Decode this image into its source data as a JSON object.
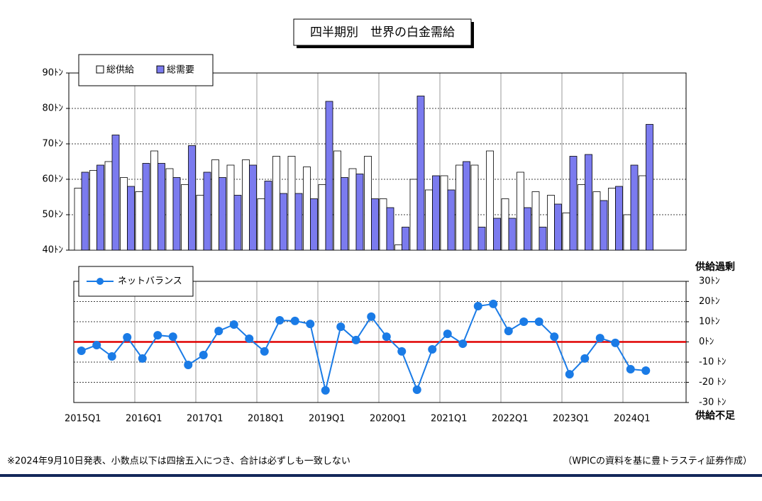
{
  "chart_data": [
    {
      "type": "bar",
      "title": "四半期別　世界の白金需給",
      "categories": [
        "2015Q1",
        null,
        null,
        null,
        "2016Q1",
        null,
        null,
        null,
        "2017Q1",
        null,
        null,
        null,
        "2018Q1",
        null,
        null,
        null,
        "2019Q1",
        null,
        null,
        null,
        "2020Q1",
        null,
        null,
        null,
        "2021Q1",
        null,
        null,
        null,
        "2022Q1",
        null,
        null,
        null,
        "2023Q1",
        null,
        null,
        null,
        "2024Q1",
        null
      ],
      "series": [
        {
          "name": "総供給",
          "color": "#ffffff",
          "values": [
            57.5,
            62.5,
            65,
            60.5,
            56.5,
            68,
            63,
            58.5,
            55.5,
            65.5,
            64,
            65.5,
            54.5,
            66.5,
            66.5,
            63.5,
            58.5,
            68,
            63,
            66.5,
            54.5,
            41.5,
            60,
            57,
            61,
            64,
            64,
            68,
            54.5,
            62,
            56.5,
            55.5,
            50.5,
            58.5,
            56.5,
            57.5,
            50,
            61
          ]
        },
        {
          "name": "総需要",
          "color": "#7b7bef",
          "values": [
            62,
            64,
            72.5,
            58,
            64.5,
            64.5,
            60.5,
            69.5,
            62,
            60.5,
            55.5,
            64,
            59.5,
            56,
            56,
            54.5,
            82,
            60.5,
            61.5,
            54.5,
            52,
            46.5,
            83.5,
            61,
            57,
            65,
            46.5,
            49,
            49,
            52,
            46.5,
            53,
            66.5,
            67,
            54,
            58,
            64,
            75.5
          ]
        }
      ],
      "ylim": [
        40,
        90
      ],
      "yticks": [
        {
          "value": 40,
          "label": "40ﾄﾝ"
        },
        {
          "value": 50,
          "label": "50ﾄﾝ"
        },
        {
          "value": 60,
          "label": "60ﾄﾝ"
        },
        {
          "value": 70,
          "label": "70ﾄﾝ"
        },
        {
          "value": 80,
          "label": "80ﾄﾝ"
        },
        {
          "value": 90,
          "label": "90ﾄﾝ"
        }
      ],
      "grid": true,
      "legend": "top-left"
    },
    {
      "type": "line",
      "series": [
        {
          "name": "ネットバランス",
          "color": "#1a7be6",
          "values": [
            -4.4,
            -1.6,
            -7.2,
            2.3,
            -8.2,
            3.3,
            2.6,
            -11.4,
            -6.5,
            5.4,
            8.6,
            1.6,
            -4.7,
            10.7,
            10.4,
            8.9,
            -24,
            7.5,
            0.9,
            12.5,
            2.6,
            -4.7,
            -23.7,
            -3.7,
            4,
            -0.9,
            17.7,
            18.8,
            5.4,
            10,
            10,
            2.6,
            -16,
            -8.2,
            1.9,
            -0.5,
            -13.5,
            -14.2
          ]
        }
      ],
      "ylim": [
        -30,
        30
      ],
      "yticks": [
        {
          "value": -30,
          "label": "-30 ﾄﾝ"
        },
        {
          "value": -20,
          "label": "-20 ﾄﾝ"
        },
        {
          "value": -10,
          "label": "-10 ﾄﾝ"
        },
        {
          "value": 0,
          "label": "0ﾄﾝ"
        },
        {
          "value": 10,
          "label": "10ﾄﾝ"
        },
        {
          "value": 20,
          "label": "20ﾄﾝ"
        },
        {
          "value": 30,
          "label": "30ﾄﾝ"
        }
      ],
      "grid": true,
      "legend": "top-left",
      "axis_side": "right",
      "annotations": [
        {
          "text": "供給過剰",
          "color": "#3366dd"
        },
        {
          "text": "供給不足",
          "color": "#e00000"
        }
      ]
    }
  ],
  "footer": {
    "note": "※2024年9月10日発表、小数点以下は四捨五入につき、合計は必ずしも一致しない",
    "source": "（WPICの資料を基に豊トラスティ証券作成）"
  }
}
